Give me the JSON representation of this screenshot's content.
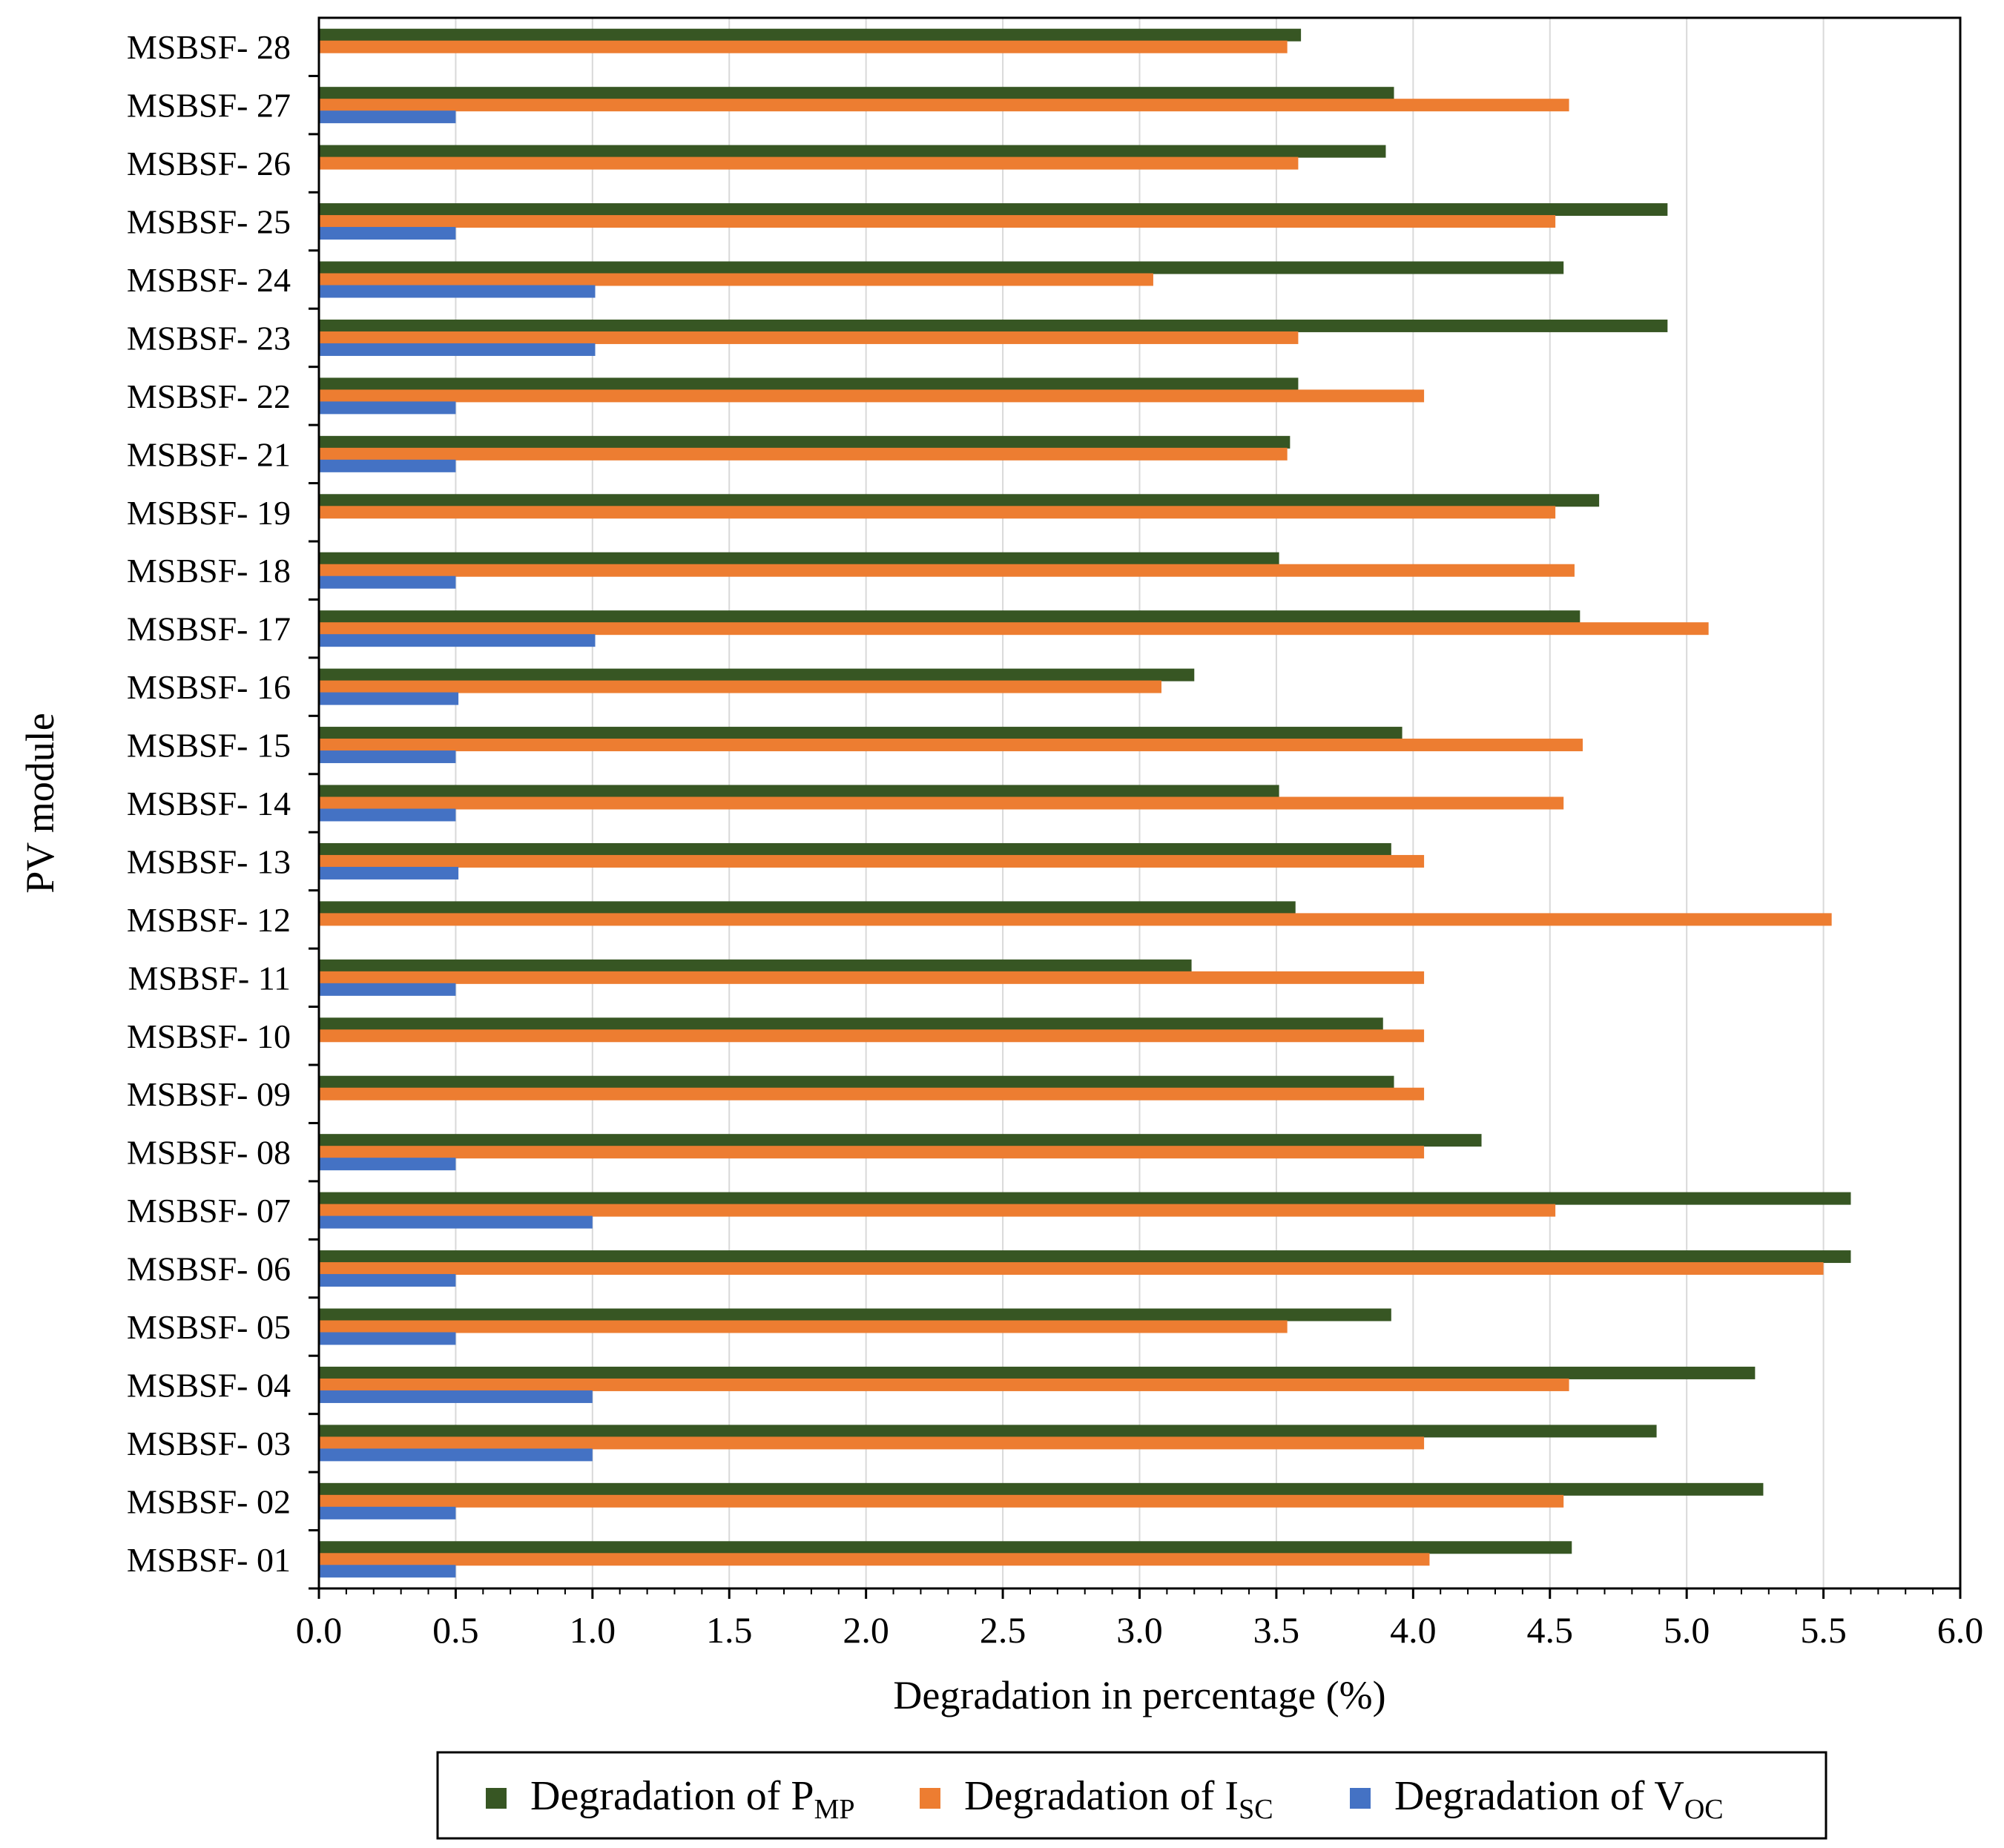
{
  "chart_data": {
    "type": "bar",
    "orientation": "horizontal",
    "xlabel": "Degradation in percentage (%)",
    "ylabel": "PV module",
    "xlim": [
      0,
      6
    ],
    "xticks": [
      "0.0",
      "0.5",
      "1.0",
      "1.5",
      "2.0",
      "2.5",
      "3.0",
      "3.5",
      "4.0",
      "4.5",
      "5.0",
      "5.5",
      "6.0"
    ],
    "grid": "vertical",
    "legend_position": "bottom",
    "categories": [
      "MSBSF- 01",
      "MSBSF- 02",
      "MSBSF- 03",
      "MSBSF- 04",
      "MSBSF- 05",
      "MSBSF- 06",
      "MSBSF- 07",
      "MSBSF- 08",
      "MSBSF- 09",
      "MSBSF- 10",
      "MSBSF- 11",
      "MSBSF- 12",
      "MSBSF- 13",
      "MSBSF- 14",
      "MSBSF- 15",
      "MSBSF- 16",
      "MSBSF- 17",
      "MSBSF- 18",
      "MSBSF- 19",
      "MSBSF- 21",
      "MSBSF- 22",
      "MSBSF- 23",
      "MSBSF- 24",
      "MSBSF- 25",
      "MSBSF- 26",
      "MSBSF- 27",
      "MSBSF- 28"
    ],
    "series": [
      {
        "name": "Degradation of P_MP",
        "legend": {
          "prefix": "Degradation of P",
          "subscript": "MP"
        },
        "color": "#375623",
        "values": [
          4.58,
          5.28,
          4.89,
          5.25,
          3.92,
          5.6,
          5.6,
          4.25,
          3.93,
          3.89,
          3.19,
          3.57,
          3.92,
          3.51,
          3.96,
          3.2,
          4.61,
          3.51,
          4.68,
          3.55,
          3.58,
          4.93,
          4.55,
          4.93,
          3.9,
          3.93,
          3.59
        ]
      },
      {
        "name": "Degradation of I_SC",
        "legend": {
          "prefix": "Degradation of I",
          "subscript": "SC"
        },
        "color": "#ED7D31",
        "values": [
          4.06,
          4.55,
          4.04,
          4.57,
          3.54,
          5.5,
          4.52,
          4.04,
          4.04,
          4.04,
          4.04,
          5.53,
          4.04,
          4.55,
          4.62,
          3.08,
          5.08,
          4.59,
          4.52,
          3.54,
          4.04,
          3.58,
          3.05,
          4.52,
          3.58,
          4.57,
          3.54
        ]
      },
      {
        "name": "Degradation of V_OC",
        "legend": {
          "prefix": "Degradation of V",
          "subscript": "OC"
        },
        "color": "#4472C4",
        "values": [
          0.5,
          0.5,
          1.0,
          1.0,
          0.5,
          0.5,
          1.0,
          0.5,
          0,
          0,
          0.5,
          0,
          0.51,
          0.5,
          0.5,
          0.51,
          1.01,
          0.5,
          0,
          0.5,
          0.5,
          1.01,
          1.01,
          0.5,
          0,
          0.5,
          0
        ]
      }
    ]
  }
}
